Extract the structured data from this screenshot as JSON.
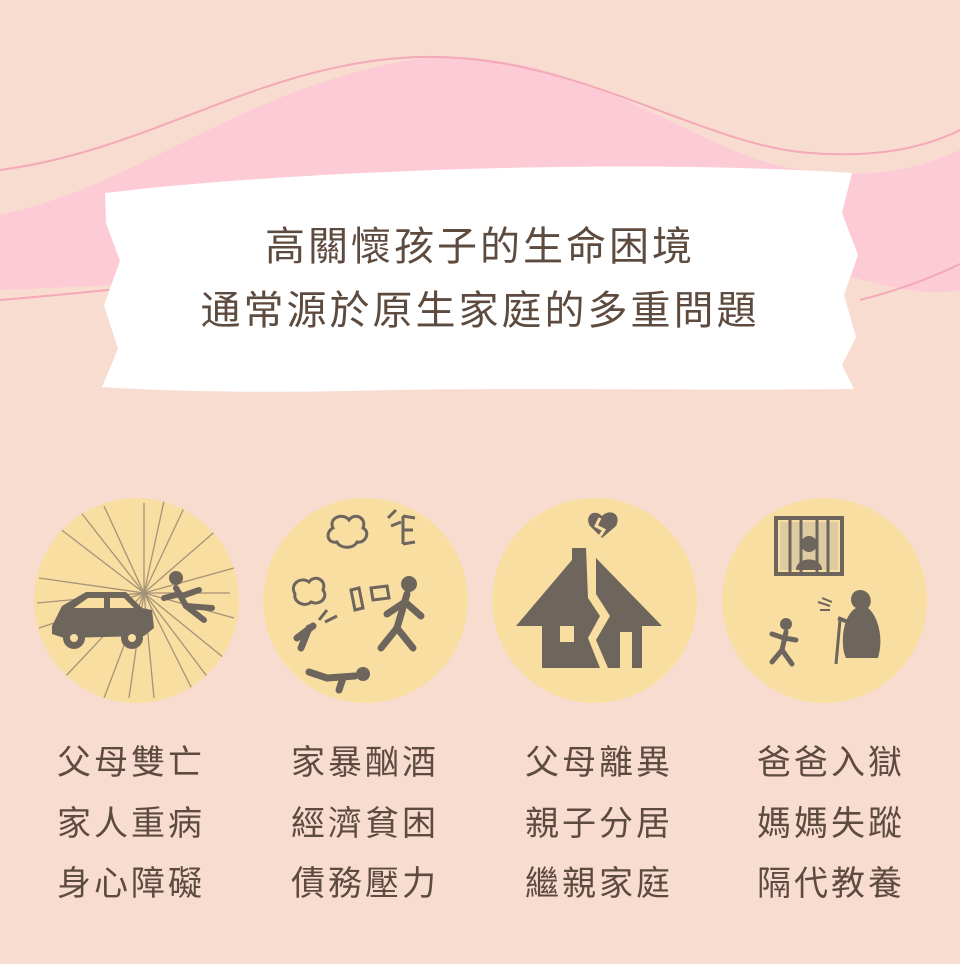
{
  "heading": {
    "line1": "高關懷孩子的生命困境",
    "line2": "通常源於原生家庭的多重問題"
  },
  "illustrations": [
    {
      "icon": "car-accident-icon"
    },
    {
      "icon": "family-violence-icon"
    },
    {
      "icon": "broken-house-icon"
    },
    {
      "icon": "prison-grandmother-icon"
    }
  ],
  "columns": [
    {
      "items": [
        "父母雙亡",
        "家人重病",
        "身心障礙"
      ]
    },
    {
      "items": [
        "家暴酗酒",
        "經濟貧困",
        "債務壓力"
      ]
    },
    {
      "items": [
        "父母離異",
        "親子分居",
        "繼親家庭"
      ]
    },
    {
      "items": [
        "爸爸入獄",
        "媽媽失蹤",
        "隔代教養"
      ]
    }
  ],
  "colors": {
    "background": "#f8dccf",
    "wave_pink": "#fccbd6",
    "banner": "#ffffff",
    "circle": "#f9dea2",
    "ink": "#5e4b3f",
    "sketch": "#6e655c"
  }
}
